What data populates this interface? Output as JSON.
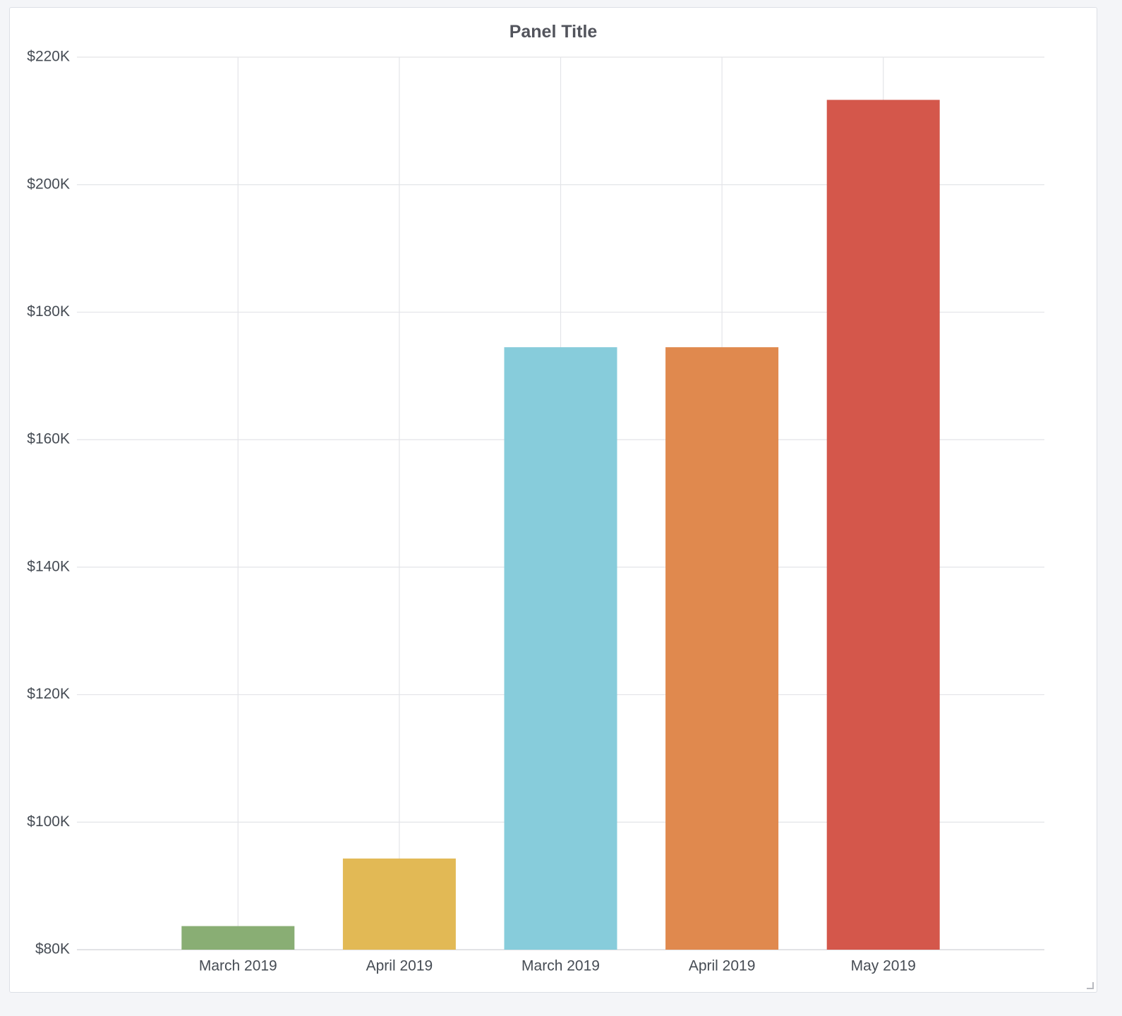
{
  "panel": {
    "title": "Panel Title"
  },
  "chart_data": {
    "type": "bar",
    "title": "Panel Title",
    "xlabel": "",
    "ylabel": "",
    "categories": [
      "March 2019",
      "April 2019",
      "March 2019",
      "April 2019",
      "May 2019"
    ],
    "values": [
      83700,
      94300,
      174500,
      174500,
      213300
    ],
    "colors": [
      "#89ae74",
      "#e2b955",
      "#87ccdb",
      "#e0894e",
      "#d4574b"
    ],
    "ylim": [
      80000,
      220000
    ],
    "yticks": [
      80000,
      100000,
      120000,
      140000,
      160000,
      180000,
      200000,
      220000
    ],
    "ytick_labels": [
      "$80K",
      "$100K",
      "$120K",
      "$140K",
      "$160K",
      "$180K",
      "$200K",
      "$220K"
    ],
    "grid": true,
    "legend": "none",
    "grid_color": "#e3e4e8",
    "axis_color": "#d0d2d8"
  }
}
